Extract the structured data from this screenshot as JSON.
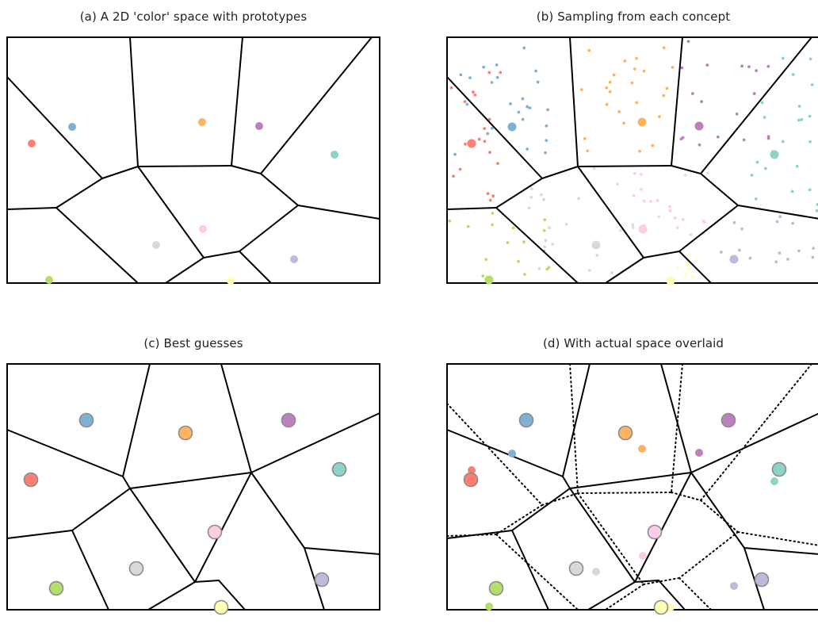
{
  "panels": {
    "a": {
      "title": "(a) A 2D 'color' space with prototypes"
    },
    "b": {
      "title": "(b) Sampling from each concept"
    },
    "c": {
      "title": "(c) Best guesses"
    },
    "d": {
      "title": "(d) With actual space overlaid"
    }
  },
  "concepts": [
    {
      "name": "red",
      "color": "#fb8072"
    },
    {
      "name": "blue",
      "color": "#80b1d3"
    },
    {
      "name": "orange",
      "color": "#fdb462"
    },
    {
      "name": "purple",
      "color": "#bc80bd"
    },
    {
      "name": "teal",
      "color": "#8dd3c7"
    },
    {
      "name": "pink",
      "color": "#fccde5"
    },
    {
      "name": "gray",
      "color": "#d9d9d9"
    },
    {
      "name": "green",
      "color": "#b3de69"
    },
    {
      "name": "yellow",
      "color": "#ffffb3"
    },
    {
      "name": "lilac",
      "color": "#bebada"
    }
  ]
}
